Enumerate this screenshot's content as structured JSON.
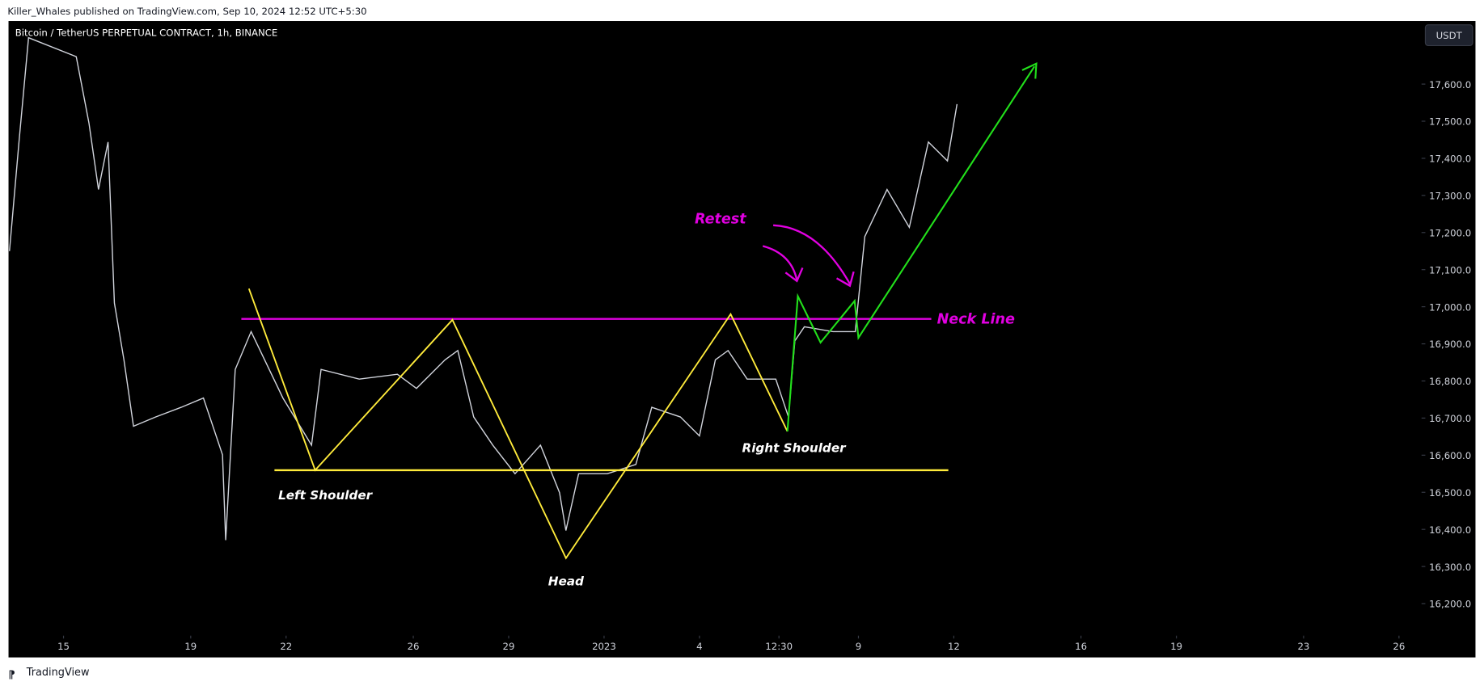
{
  "header": {
    "publisher": "Killer_Whales published on TradingView.com, Sep 10, 2024 12:52 UTC+5:30",
    "footer": "TradingView"
  },
  "chart_data": {
    "type": "line",
    "title": "Bitcoin / TetherUS PERPETUAL CONTRACT, 1h, BINANCE",
    "currency": "USDT",
    "annotations": {
      "retest": "Retest",
      "neck_line": "Neck Line",
      "left_shoulder": "Left Shoulder",
      "head": "Head",
      "right_shoulder": "Right Shoulder"
    },
    "xlim": [
      -1.73,
      42.65
    ],
    "ylim": [
      16055,
      17770
    ],
    "xticks": [
      {
        "value": 0,
        "label": "15"
      },
      {
        "value": 4,
        "label": "19"
      },
      {
        "value": 7,
        "label": "22"
      },
      {
        "value": 11,
        "label": "26"
      },
      {
        "value": 14,
        "label": "29"
      },
      {
        "value": 17,
        "label": "2023"
      },
      {
        "value": 20,
        "label": "4"
      },
      {
        "value": 22.5,
        "label": "12:30"
      },
      {
        "value": 25,
        "label": "9"
      },
      {
        "value": 28,
        "label": "12"
      },
      {
        "value": 32,
        "label": "16"
      },
      {
        "value": 35,
        "label": "19"
      },
      {
        "value": 39,
        "label": "23"
      },
      {
        "value": 42,
        "label": "26"
      }
    ],
    "yticks": [
      {
        "value": 16200,
        "label": "16,200.0"
      },
      {
        "value": 16300,
        "label": "16,300.0"
      },
      {
        "value": 16400,
        "label": "16,400.0"
      },
      {
        "value": 16500,
        "label": "16,500.0"
      },
      {
        "value": 16600,
        "label": "16,600.0"
      },
      {
        "value": 16700,
        "label": "16,700.0"
      },
      {
        "value": 16800,
        "label": "16,800.0"
      },
      {
        "value": 16900,
        "label": "16,900.0"
      },
      {
        "value": 17000,
        "label": "17,000.0"
      },
      {
        "value": 17100,
        "label": "17,100.0"
      },
      {
        "value": 17200,
        "label": "17,200.0"
      },
      {
        "value": 17300,
        "label": "17,300.0"
      },
      {
        "value": 17400,
        "label": "17,400.0"
      },
      {
        "value": 17500,
        "label": "17,500.0"
      },
      {
        "value": 17600,
        "label": "17,600.0"
      }
    ],
    "series": [
      {
        "color": "#d1d4dc",
        "x": [
          -1.7,
          -1.4,
          -1.1,
          0.4,
          0.8,
          1.1,
          1.4,
          1.6,
          1.9,
          2.2,
          2.9,
          3.7,
          4.4,
          5.0,
          5.1,
          5.4,
          5.9,
          6.9,
          7.8,
          8.1,
          9.3,
          10.5,
          11.1,
          12.0,
          12.4,
          12.9,
          13.5,
          14.2,
          15.0,
          15.6,
          15.8,
          16.2,
          17.1,
          18.0,
          18.5,
          19.4,
          20.0,
          20.5,
          20.9,
          21.5,
          22.4,
          22.8,
          23.0,
          23.3,
          24.2,
          24.9,
          25.2,
          25.9,
          26.6,
          27.2,
          27.8,
          28.1
        ],
        "values": [
          17150,
          17445,
          17725,
          17674,
          17495,
          17316,
          17444,
          17010,
          16857,
          16678,
          16703,
          16729,
          16754,
          16601,
          16371,
          16831,
          16933,
          16754,
          16627,
          16831,
          16805,
          16818,
          16780,
          16857,
          16882,
          16703,
          16627,
          16550,
          16627,
          16499,
          16397,
          16550,
          16550,
          16575,
          16729,
          16703,
          16652,
          16857,
          16882,
          16805,
          16805,
          16703,
          16908,
          16946,
          16933,
          16933,
          17189,
          17316,
          17214,
          17444,
          17393,
          17546
        ]
      }
    ]
  }
}
